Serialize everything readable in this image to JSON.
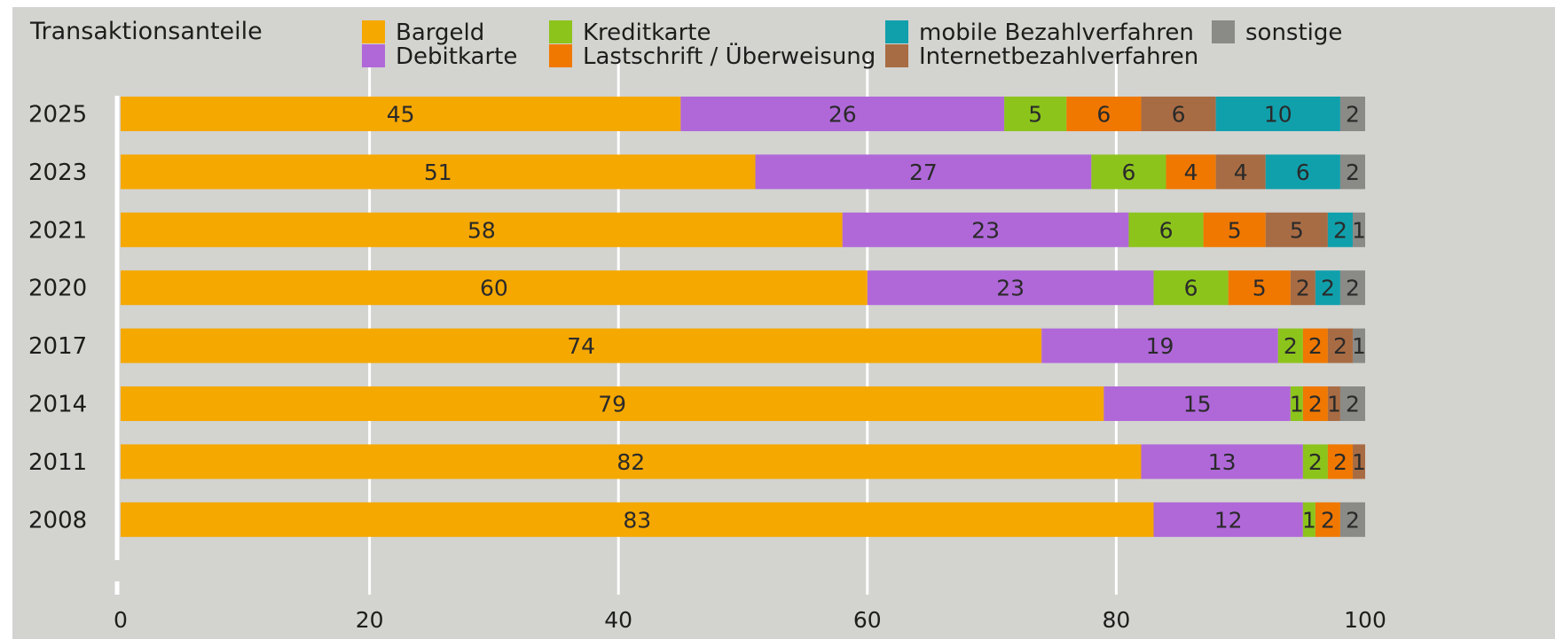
{
  "chart_data": {
    "type": "bar",
    "orientation": "horizontal",
    "stacked": true,
    "title": "Transaktionsanteile",
    "categories": [
      "2025",
      "2023",
      "2021",
      "2020",
      "2017",
      "2014",
      "2011",
      "2008"
    ],
    "series": [
      {
        "name": "Bargeld",
        "color": "#f5a800",
        "values": [
          45,
          51,
          58,
          60,
          74,
          79,
          82,
          83
        ]
      },
      {
        "name": "Debitkarte",
        "color": "#b068d9",
        "values": [
          26,
          27,
          23,
          23,
          19,
          15,
          13,
          12
        ]
      },
      {
        "name": "Kreditkarte",
        "color": "#8cc41c",
        "values": [
          5,
          6,
          6,
          6,
          2,
          1,
          2,
          1
        ]
      },
      {
        "name": "Lastschrift / Überweisung",
        "color": "#f07800",
        "values": [
          6,
          4,
          5,
          5,
          2,
          2,
          2,
          2
        ]
      },
      {
        "name": "Internetbezahlverfahren",
        "color": "#a86c44",
        "values": [
          6,
          4,
          5,
          2,
          2,
          1,
          1,
          0
        ]
      },
      {
        "name": "mobile Bezahlverfahren",
        "color": "#10a0ac",
        "values": [
          10,
          6,
          2,
          2,
          0,
          0,
          0,
          0
        ]
      },
      {
        "name": "sonstige",
        "color": "#8a8a86",
        "values": [
          2,
          2,
          1,
          2,
          1,
          2,
          0,
          2
        ]
      }
    ],
    "legend_order": [
      "Bargeld",
      "Debitkarte",
      "Kreditkarte",
      "Lastschrift / Überweisung",
      "mobile Bezahlverfahren",
      "Internetbezahlverfahren",
      "sonstige"
    ],
    "xlim": [
      0,
      100
    ],
    "xticks": [
      0,
      20,
      40,
      60,
      80,
      100
    ],
    "grid": true,
    "legend_position": "top"
  }
}
